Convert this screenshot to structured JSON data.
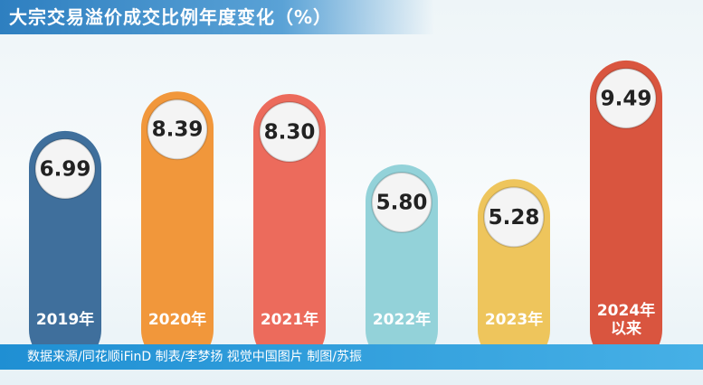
{
  "chart_data": {
    "type": "bar",
    "title": "大宗交易溢价成交比例年度变化（%）",
    "categories": [
      "2019年",
      "2020年",
      "2021年",
      "2022年",
      "2023年",
      "2024年\n以来"
    ],
    "values": [
      6.99,
      8.39,
      8.3,
      5.8,
      5.28,
      9.49
    ],
    "value_labels": [
      "6.99",
      "8.39",
      "8.30",
      "5.80",
      "5.28",
      "9.49"
    ],
    "colors": [
      "#3f6f9c",
      "#f1973b",
      "#ec6b5c",
      "#93d2d9",
      "#eec55c",
      "#d9553f"
    ],
    "source": "数据来源/同花顺iFinD  制表/李梦扬  视觉中国图片  制图/苏振"
  }
}
